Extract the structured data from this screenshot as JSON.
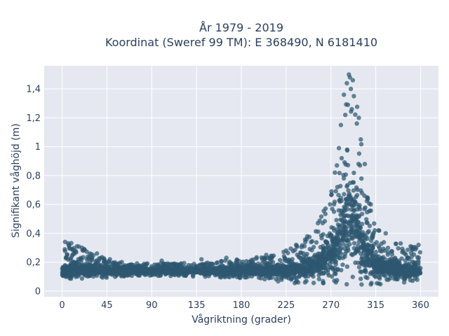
{
  "chart_data": {
    "type": "scatter",
    "title": "År 1979 - 2019",
    "subtitle": "Koordinat (Sweref 99 TM): E 368490, N 6181410",
    "xlabel": "Vågriktning (grader)",
    "ylabel": "Signifikant våghöjd (m)",
    "xlim": [
      -18,
      378
    ],
    "ylim": [
      -0.04,
      1.56
    ],
    "xticks": [
      0,
      45,
      90,
      135,
      180,
      225,
      270,
      315,
      360
    ],
    "xtick_labels": [
      "0",
      "45",
      "90",
      "135",
      "180",
      "225",
      "270",
      "315",
      "360"
    ],
    "yticks": [
      0,
      0.2,
      0.4,
      0.6,
      0.8,
      1,
      1.2,
      1.4
    ],
    "ytick_labels": [
      "0",
      "0,2",
      "0,4",
      "0,6",
      "0,8",
      "1",
      "1,2",
      "1,4"
    ],
    "grid": true,
    "legend": "none",
    "colors": {
      "marker": "#2e5770",
      "plot_bg": "#e5e8f0",
      "grid": "#ffffff",
      "text": "#2a3f5f"
    },
    "envelope": {
      "x": [
        0,
        10,
        20,
        30,
        45,
        60,
        90,
        135,
        180,
        200,
        225,
        240,
        255,
        265,
        275,
        280,
        285,
        290,
        295,
        300,
        305,
        315,
        330,
        345,
        360
      ],
      "ymin": [
        0.08,
        0.08,
        0.08,
        0.09,
        0.09,
        0.1,
        0.1,
        0.1,
        0.09,
        0.08,
        0.06,
        0.05,
        0.05,
        0.04,
        0.04,
        0.04,
        0.04,
        0.04,
        0.04,
        0.04,
        0.04,
        0.04,
        0.05,
        0.06,
        0.07
      ],
      "ymax": [
        0.28,
        0.34,
        0.3,
        0.27,
        0.22,
        0.2,
        0.19,
        0.2,
        0.22,
        0.24,
        0.28,
        0.34,
        0.44,
        0.6,
        0.85,
        1.05,
        1.3,
        1.5,
        1.35,
        1.1,
        0.7,
        0.45,
        0.35,
        0.32,
        0.3
      ],
      "ymode": [
        0.14,
        0.15,
        0.15,
        0.14,
        0.14,
        0.14,
        0.14,
        0.14,
        0.14,
        0.14,
        0.14,
        0.15,
        0.18,
        0.22,
        0.3,
        0.38,
        0.45,
        0.5,
        0.45,
        0.35,
        0.25,
        0.18,
        0.15,
        0.14,
        0.14
      ]
    },
    "outliers": [
      [
        3,
        0.34
      ],
      [
        6,
        0.33
      ],
      [
        15,
        0.31
      ],
      [
        20,
        0.3
      ],
      [
        35,
        0.26
      ],
      [
        48,
        0.22
      ],
      [
        60,
        0.2
      ],
      [
        100,
        0.21
      ],
      [
        140,
        0.22
      ],
      [
        165,
        0.23
      ],
      [
        205,
        0.25
      ],
      [
        225,
        0.28
      ],
      [
        235,
        0.32
      ],
      [
        283,
        1.36
      ],
      [
        286,
        1.44
      ],
      [
        288,
        1.5
      ],
      [
        289,
        1.48
      ],
      [
        290,
        1.4
      ],
      [
        292,
        1.46
      ],
      [
        293,
        1.35
      ],
      [
        287,
        1.29
      ],
      [
        291,
        1.26
      ],
      [
        296,
        1.16
      ],
      [
        298,
        1.2
      ],
      [
        280,
        1.15
      ],
      [
        278,
        0.99
      ],
      [
        276,
        0.87
      ],
      [
        274,
        0.82
      ],
      [
        300,
        1.05
      ],
      [
        304,
        0.88
      ],
      [
        310,
        0.6
      ],
      [
        318,
        0.42
      ],
      [
        325,
        0.4
      ],
      [
        340,
        0.33
      ],
      [
        350,
        0.31
      ],
      [
        358,
        0.32
      ]
    ]
  }
}
